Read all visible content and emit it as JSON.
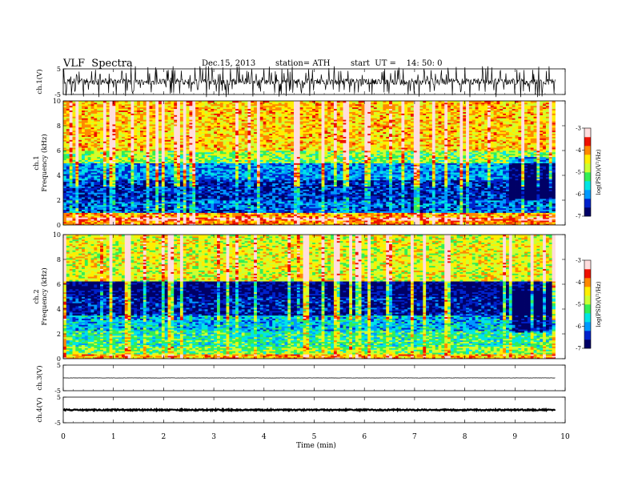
{
  "header": {
    "title": "VLF  Spectra",
    "date": "Dec.15, 2013",
    "station": "station= ATH",
    "start_ut": "start  UT =    14: 50: 0"
  },
  "colors": {
    "palette": [
      "#000066",
      "#0022cc",
      "#0099ff",
      "#00e5e5",
      "#33ee55",
      "#ccff33",
      "#ffee00",
      "#ff8800",
      "#ee1100",
      "#ffdddd"
    ],
    "trace": "#000000"
  },
  "chart_data": [
    {
      "type": "line",
      "panel": "ch1-waveform",
      "ylabel": "ch.1(V)",
      "yticks": [
        "5",
        "-5"
      ],
      "ylim": [
        -5,
        5
      ],
      "x_range": [
        0,
        9.8
      ],
      "baseline": 0,
      "noise_amplitude": 1.2,
      "spike_count": 180
    },
    {
      "type": "heatmap",
      "panel": "ch1-spectrogram",
      "ylabel": "ch.1\nFrequency  (kHz)",
      "ylabel_lines": [
        "ch.1",
        "Frequency  (kHz)"
      ],
      "yticks": [
        "0",
        "2",
        "4",
        "6",
        "8",
        "10"
      ],
      "ylim": [
        0,
        10
      ],
      "x_range": [
        0,
        9.8
      ],
      "colorbar": {
        "label": "log(PSD)(V²/Hz)",
        "ticks": [
          "-3",
          "-4",
          "-5",
          "-6",
          "-7"
        ],
        "range": [
          -7,
          -3
        ]
      },
      "bands": [
        {
          "f0": 0.0,
          "f1": 0.3,
          "level": -4.0
        },
        {
          "f0": 0.3,
          "f1": 0.6,
          "level": -3.4
        },
        {
          "f0": 0.6,
          "f1": 1.0,
          "level": -4.2
        },
        {
          "f0": 1.0,
          "f1": 2.0,
          "level": -6.2
        },
        {
          "f0": 2.0,
          "f1": 3.6,
          "level": -6.5
        },
        {
          "f0": 3.6,
          "f1": 5.0,
          "level": -6.0
        },
        {
          "f0": 5.0,
          "f1": 6.0,
          "level": -5.0
        },
        {
          "f0": 6.0,
          "f1": 10.0,
          "level": -4.3
        }
      ],
      "late_quiet_from_min": 8.9
    },
    {
      "type": "heatmap",
      "panel": "ch2-spectrogram",
      "ylabel": "ch.2\nFrequency  (kHz)",
      "ylabel_lines": [
        "ch.2",
        "Frequency  (kHz)"
      ],
      "yticks": [
        "0",
        "2",
        "4",
        "6",
        "8",
        "10"
      ],
      "ylim": [
        0,
        10
      ],
      "x_range": [
        0,
        9.8
      ],
      "colorbar": {
        "label": "log(PSD)(V²/Hz)",
        "ticks": [
          "-3",
          "-4",
          "-5",
          "-6",
          "-7"
        ],
        "range": [
          -7,
          -3
        ]
      },
      "bands": [
        {
          "f0": 0.0,
          "f1": 0.3,
          "level": -4.2
        },
        {
          "f0": 0.3,
          "f1": 1.0,
          "level": -5.0
        },
        {
          "f0": 1.0,
          "f1": 2.2,
          "level": -5.4
        },
        {
          "f0": 2.2,
          "f1": 3.4,
          "level": -5.8
        },
        {
          "f0": 3.4,
          "f1": 5.0,
          "level": -6.6
        },
        {
          "f0": 5.0,
          "f1": 6.2,
          "level": -6.8
        },
        {
          "f0": 6.2,
          "f1": 10.0,
          "level": -4.6
        }
      ],
      "late_quiet_from_min": 8.9
    },
    {
      "type": "line",
      "panel": "ch3-waveform",
      "ylabel": "ch.3(V)",
      "yticks": [
        "5",
        "-5"
      ],
      "ylim": [
        -5,
        5
      ],
      "x_range": [
        0,
        9.8
      ],
      "baseline": 0,
      "noise_amplitude": 0.05,
      "spike_count": 0
    },
    {
      "type": "line",
      "panel": "ch4-waveform",
      "ylabel": "ch.4(V)",
      "yticks": [
        "5",
        "-5"
      ],
      "ylim": [
        -5,
        5
      ],
      "x_range": [
        0,
        9.8
      ],
      "baseline": 0,
      "noise_amplitude": 0.25,
      "spike_count": 0
    }
  ],
  "xaxis": {
    "label": "Time  (min)",
    "ticks": [
      "0",
      "1",
      "2",
      "3",
      "4",
      "5",
      "6",
      "7",
      "8",
      "9",
      "10"
    ],
    "range": [
      0,
      10
    ]
  }
}
